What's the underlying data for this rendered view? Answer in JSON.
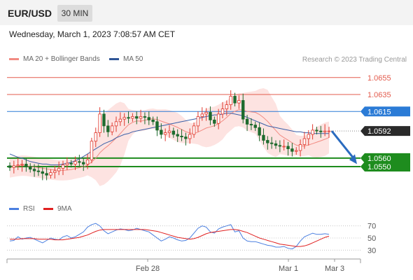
{
  "header": {
    "pair": "EUR/USD",
    "timeframe": "30 MIN"
  },
  "datetime": "Wednesday, March 1, 2023 7:08:57 AM CET",
  "legend": {
    "ma20": {
      "label": "MA 20 + Bollinger Bands",
      "color": "#f28b82"
    },
    "ma50": {
      "label": "MA 50",
      "color": "#2f5597"
    }
  },
  "credit": "Research © 2023 Trading Central",
  "rsi_legend": {
    "rsi": {
      "label": "RSI",
      "color": "#4a7fe0"
    },
    "ma9": {
      "label": "9MA",
      "color": "#e02020"
    }
  },
  "chart_data": [
    {
      "type": "candlestick",
      "ylim": [
        1.0522,
        1.0668
      ],
      "x_labels": [
        "Feb 28",
        "Mar 1",
        "Mar 3"
      ],
      "levels": [
        {
          "value": 1.0655,
          "label": "1.0655",
          "kind": "resistance",
          "color": "#e35b4d"
        },
        {
          "value": 1.0635,
          "label": "1.0635",
          "kind": "resistance",
          "color": "#e35b4d"
        },
        {
          "value": 1.0615,
          "label": "1.0615",
          "kind": "pivot",
          "color": "#2b7bd6"
        },
        {
          "value": 1.0592,
          "label": "1.0592",
          "kind": "last",
          "color": "#2a2a2a"
        },
        {
          "value": 1.056,
          "label": "1.0560",
          "kind": "support",
          "color": "#1e8c1e"
        },
        {
          "value": 1.055,
          "label": "1.0550",
          "kind": "support",
          "color": "#1e8c1e"
        }
      ],
      "closes": [
        1.0549,
        1.0551,
        1.0552,
        1.0553,
        1.055,
        1.0547,
        1.0545,
        1.0544,
        1.0542,
        1.054,
        1.0543,
        1.0545,
        1.0548,
        1.0552,
        1.0554,
        1.0553,
        1.0556,
        1.0555,
        1.0553,
        1.0558,
        1.058,
        1.059,
        1.0612,
        1.0598,
        1.0591,
        1.0598,
        1.0603,
        1.0606,
        1.0608,
        1.0607,
        1.0609,
        1.0607,
        1.0609,
        1.0608,
        1.0605,
        1.0603,
        1.0593,
        1.0588,
        1.059,
        1.0592,
        1.0588,
        1.0586,
        1.0585,
        1.0583,
        1.0588,
        1.0598,
        1.0609,
        1.0612,
        1.0614,
        1.0605,
        1.0601,
        1.0612,
        1.0618,
        1.0623,
        1.0633,
        1.0625,
        1.0628,
        1.0606,
        1.06,
        1.0599,
        1.0596,
        1.0587,
        1.0581,
        1.0578,
        1.0577,
        1.0575,
        1.0574,
        1.0574,
        1.0571,
        1.0568,
        1.0569,
        1.0576,
        1.0583,
        1.0588,
        1.0593,
        1.0592,
        1.0591,
        1.0592,
        1.0592
      ],
      "ma50": [
        1.0565,
        1.0563,
        1.0561,
        1.056,
        1.0558,
        1.0556,
        1.0555,
        1.0554,
        1.0553,
        1.0553,
        1.0552,
        1.0552,
        1.0552,
        1.0553,
        1.0554,
        1.0555,
        1.0557,
        1.0559,
        1.0562,
        1.0565,
        1.0568,
        1.0571,
        1.0574,
        1.0577,
        1.0579,
        1.0581,
        1.0584,
        1.0586,
        1.0588,
        1.0589,
        1.0591,
        1.0592,
        1.0593,
        1.0594,
        1.0595,
        1.0596,
        1.0597,
        1.0598,
        1.0599,
        1.06,
        1.0601,
        1.0602,
        1.0603,
        1.0604,
        1.0605,
        1.0606,
        1.0607,
        1.0608,
        1.0609,
        1.061,
        1.0611,
        1.0611,
        1.0612,
        1.0613,
        1.0613,
        1.0612,
        1.0611,
        1.061,
        1.0608,
        1.0606,
        1.0604,
        1.0602,
        1.06,
        1.0598,
        1.0597,
        1.0596,
        1.0595,
        1.0594,
        1.0593,
        1.0592,
        1.0591,
        1.0591,
        1.059,
        1.059,
        1.0589,
        1.0589,
        1.0589,
        1.0589,
        1.0589
      ],
      "forecast": {
        "from": 1.0592,
        "to": 1.0553
      }
    },
    {
      "type": "line",
      "ylim": [
        20,
        80
      ],
      "y_ticks": [
        70,
        50,
        30
      ],
      "rsi": [
        45,
        46,
        52,
        48,
        50,
        51,
        48,
        45,
        42,
        46,
        50,
        48,
        47,
        52,
        54,
        50,
        52,
        56,
        60,
        68,
        72,
        74,
        70,
        62,
        57,
        60,
        63,
        65,
        64,
        62,
        63,
        66,
        64,
        62,
        60,
        55,
        50,
        45,
        48,
        52,
        50,
        47,
        45,
        46,
        50,
        58,
        66,
        70,
        68,
        60,
        58,
        65,
        68,
        70,
        72,
        60,
        62,
        50,
        45,
        44,
        44,
        42,
        40,
        38,
        37,
        35,
        35,
        36,
        33,
        32,
        36,
        45,
        52,
        55,
        58,
        56,
        56,
        57,
        56
      ],
      "ma9": [
        48,
        48,
        48,
        49,
        49,
        49,
        49,
        48,
        48,
        48,
        48,
        47,
        47,
        47,
        48,
        49,
        50,
        51,
        53,
        55,
        58,
        61,
        63,
        64,
        64,
        64,
        64,
        64,
        64,
        64,
        64,
        64,
        64,
        64,
        63,
        62,
        61,
        59,
        57,
        55,
        53,
        51,
        50,
        49,
        48,
        49,
        51,
        54,
        57,
        59,
        60,
        61,
        62,
        63,
        64,
        64,
        63,
        61,
        59,
        56,
        53,
        50,
        48,
        46,
        44,
        42,
        40,
        39,
        38,
        37,
        36,
        36,
        37,
        39,
        42,
        45,
        48,
        51,
        53
      ]
    }
  ]
}
